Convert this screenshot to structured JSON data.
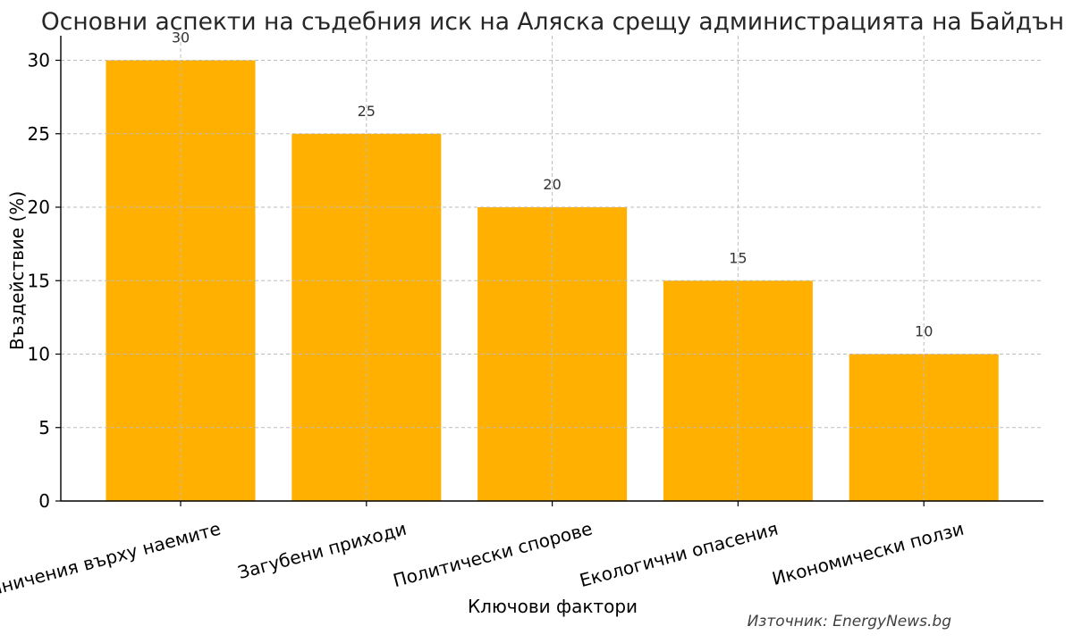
{
  "chart_data": {
    "type": "bar",
    "title": "Основни аспекти на съдебния иск на Аляска срещу администрацията на Байдън",
    "xlabel": "Ключови фактори",
    "ylabel": "Въздействие (%)",
    "categories": [
      "Ограничения върху наемите",
      "Загубени приходи",
      "Политически спорове",
      "Екологични опасения",
      "Икономически ползи"
    ],
    "values": [
      30,
      25,
      20,
      15,
      10
    ],
    "ylim": [
      0,
      30
    ],
    "yticks": [
      0,
      5,
      10,
      15,
      20,
      25,
      30
    ],
    "grid": true,
    "bar_color": "#ffb000",
    "source": "Източник: EnergyNews.bg"
  }
}
